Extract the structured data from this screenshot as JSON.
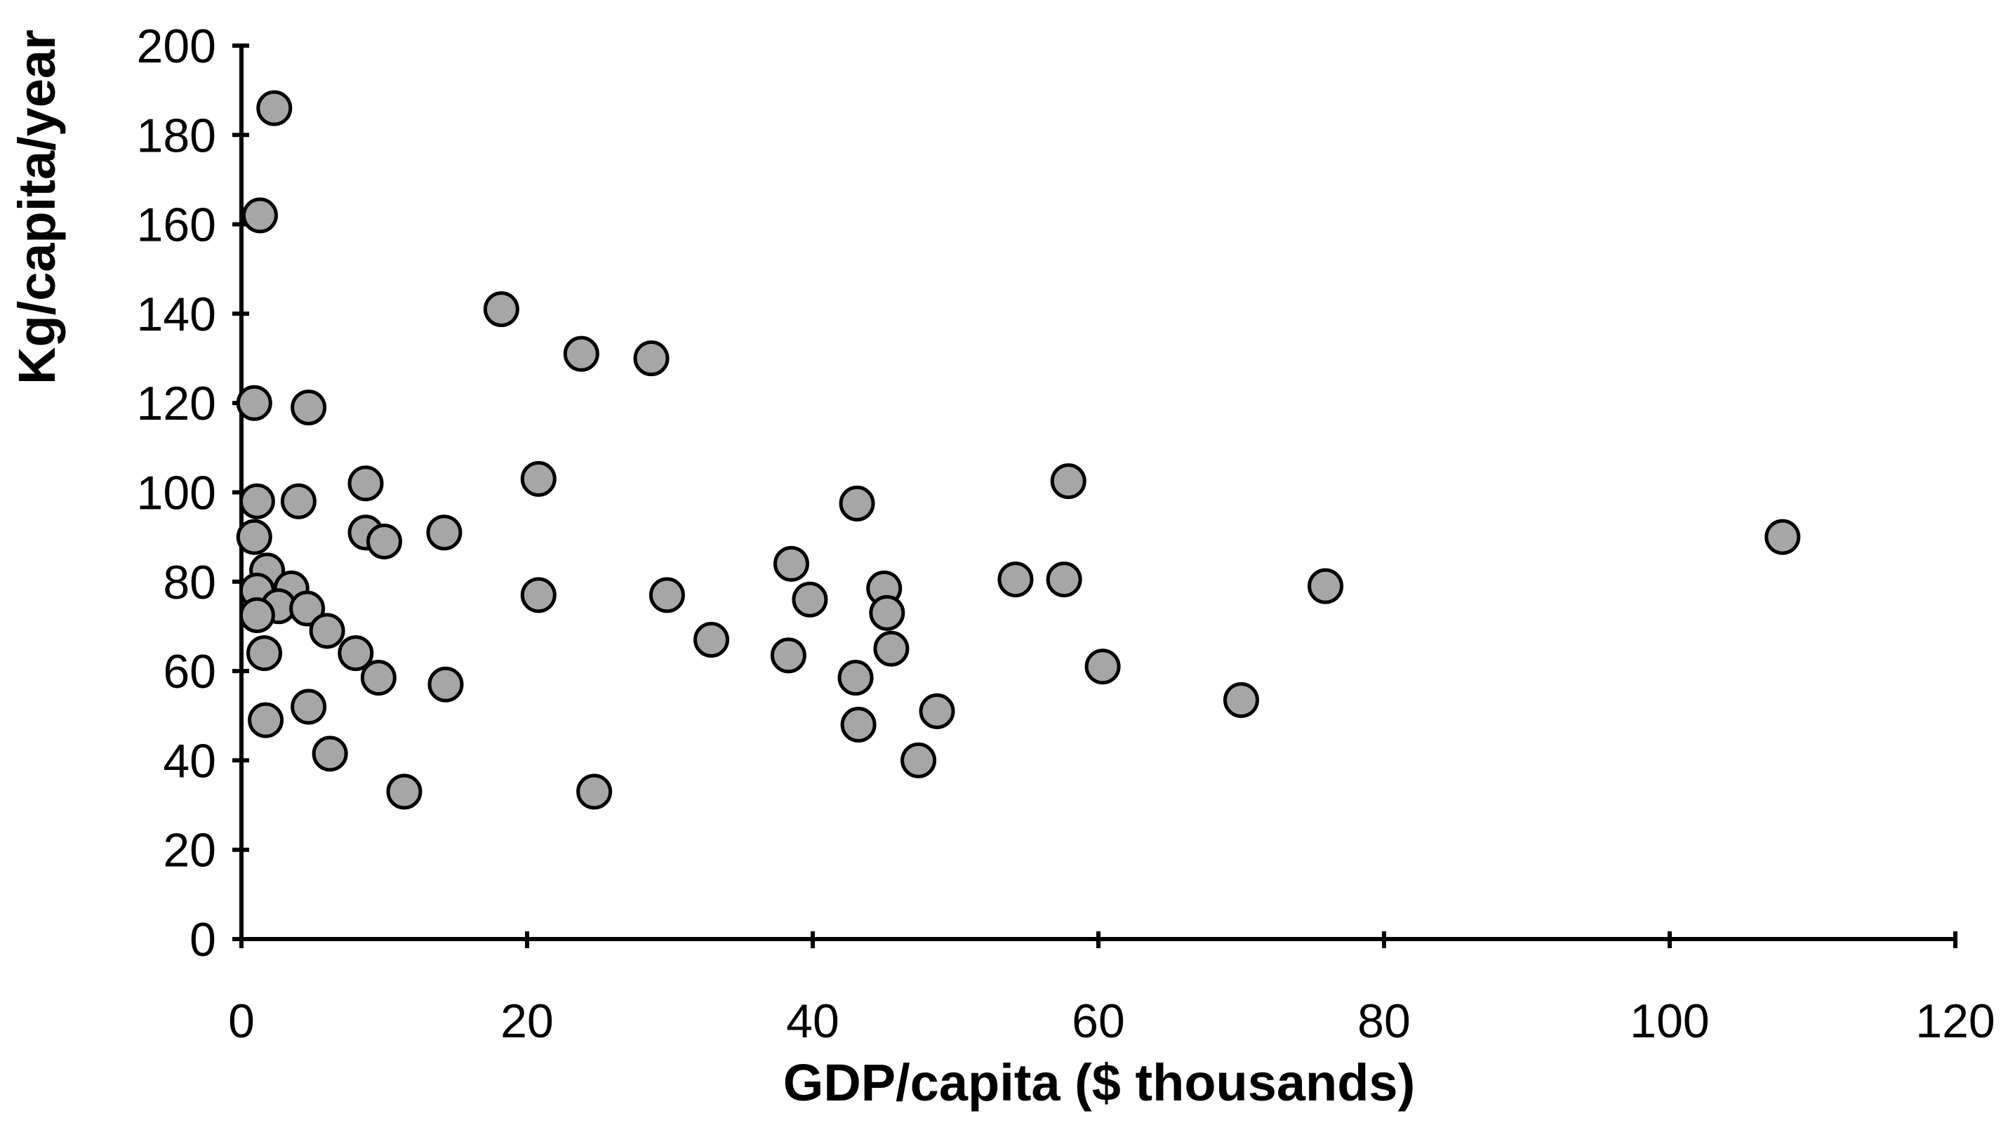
{
  "chart_data": {
    "type": "scatter",
    "title": "",
    "xlabel": "GDP/capita ($ thousands)",
    "ylabel": "Kg/capita/year",
    "xlim": [
      0,
      120
    ],
    "ylim": [
      0,
      200
    ],
    "x_ticks": [
      0,
      20,
      40,
      60,
      80,
      100,
      120
    ],
    "y_ticks": [
      0,
      20,
      40,
      60,
      80,
      100,
      120,
      140,
      160,
      180,
      200
    ],
    "grid": false,
    "legend": "none",
    "marker": {
      "shape": "circle",
      "fill_color": "#a6a6a6",
      "stroke_color": "#000000"
    },
    "axis_color": "#000000",
    "background_color": "#ffffff",
    "series": [
      {
        "name": "countries",
        "points": [
          [
            2.3,
            186
          ],
          [
            1.3,
            162
          ],
          [
            18.2,
            141
          ],
          [
            23.8,
            131
          ],
          [
            28.7,
            130
          ],
          [
            0.9,
            120
          ],
          [
            4.7,
            119
          ],
          [
            8.7,
            102
          ],
          [
            20.8,
            103
          ],
          [
            1.1,
            98
          ],
          [
            4.0,
            98
          ],
          [
            0.9,
            90
          ],
          [
            8.7,
            91
          ],
          [
            10.0,
            89
          ],
          [
            14.2,
            91
          ],
          [
            1.8,
            82.5
          ],
          [
            1.1,
            78
          ],
          [
            3.5,
            78.5
          ],
          [
            2.6,
            74.5
          ],
          [
            1.1,
            72.5
          ],
          [
            1.6,
            64
          ],
          [
            4.6,
            74
          ],
          [
            6.0,
            69
          ],
          [
            8.0,
            64
          ],
          [
            9.6,
            58.5
          ],
          [
            14.3,
            57
          ],
          [
            1.7,
            49
          ],
          [
            4.7,
            52
          ],
          [
            6.2,
            41.5
          ],
          [
            11.4,
            33
          ],
          [
            24.7,
            33
          ],
          [
            20.8,
            77
          ],
          [
            29.8,
            77
          ],
          [
            43.1,
            97.5
          ],
          [
            38.5,
            84
          ],
          [
            39.8,
            76
          ],
          [
            45.0,
            78.5
          ],
          [
            45.2,
            73
          ],
          [
            32.9,
            67
          ],
          [
            38.3,
            63.5
          ],
          [
            45.5,
            65
          ],
          [
            43.0,
            58.5
          ],
          [
            48.7,
            51
          ],
          [
            43.2,
            48
          ],
          [
            47.4,
            40
          ],
          [
            54.2,
            80.5
          ],
          [
            57.6,
            80.5
          ],
          [
            57.9,
            102.5
          ],
          [
            60.3,
            61
          ],
          [
            70.0,
            53.5
          ],
          [
            75.9,
            79
          ],
          [
            107.9,
            90
          ]
        ]
      }
    ]
  }
}
